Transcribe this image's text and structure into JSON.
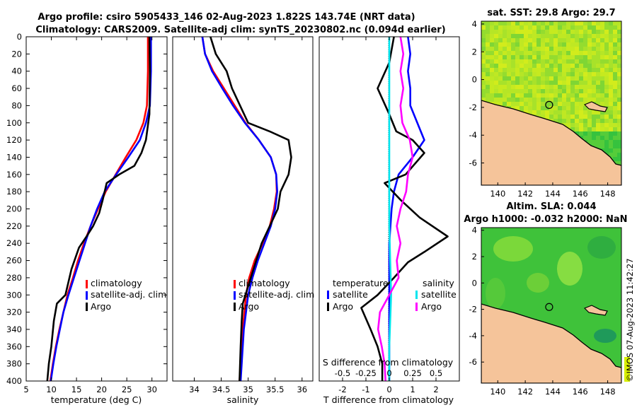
{
  "title_line1": "Argo profile: csiro 5905433_146 02-Aug-2023 1.822S 143.74E (NRT data)",
  "title_line2": "Climatology: CARS2009. Satellite-adj clim: synTS_20230802.nc (0.094d earlier)",
  "side_text": "©IMOS 07-Aug-2023 11:42:27",
  "colors": {
    "climatology": "#ff0000",
    "satellite": "#0000ff",
    "argo": "#000000",
    "argo_sal": "#ff00ff",
    "sat_sal": "#00e5ee",
    "land": "#f5c49a",
    "coast": "#000000"
  },
  "chart_data": [
    {
      "type": "line",
      "name": "temperature-profile",
      "xlabel": "temperature (deg C)",
      "xlim": [
        5,
        33
      ],
      "ylim": [
        400,
        0
      ],
      "xticks": [
        5,
        10,
        15,
        20,
        25,
        30
      ],
      "yticks": [
        0,
        20,
        40,
        60,
        80,
        100,
        120,
        140,
        160,
        180,
        200,
        220,
        240,
        260,
        280,
        300,
        320,
        340,
        360,
        380,
        400
      ],
      "legend": [
        "climatology",
        "satellite-adj. clim",
        "Argo"
      ],
      "series": [
        {
          "name": "climatology",
          "color": "#ff0000",
          "points": [
            [
              29.2,
              0
            ],
            [
              29.2,
              40
            ],
            [
              29.0,
              80
            ],
            [
              28.3,
              100
            ],
            [
              26.9,
              120
            ],
            [
              24.8,
              140
            ],
            [
              22.8,
              160
            ],
            [
              20.8,
              180
            ],
            [
              19.3,
              200
            ],
            [
              17.8,
              220
            ],
            [
              16.5,
              240
            ],
            [
              15.3,
              260
            ],
            [
              14.3,
              280
            ],
            [
              13.2,
              300
            ],
            [
              12.4,
              320
            ],
            [
              11.6,
              340
            ],
            [
              10.9,
              360
            ],
            [
              10.3,
              380
            ],
            [
              9.8,
              400
            ]
          ]
        },
        {
          "name": "satellite",
          "color": "#0000ff",
          "points": [
            [
              29.8,
              0
            ],
            [
              29.8,
              40
            ],
            [
              29.6,
              80
            ],
            [
              28.8,
              100
            ],
            [
              27.6,
              120
            ],
            [
              25.3,
              140
            ],
            [
              22.9,
              160
            ],
            [
              20.6,
              180
            ],
            [
              19.1,
              200
            ],
            [
              17.8,
              220
            ],
            [
              16.7,
              240
            ],
            [
              15.6,
              260
            ],
            [
              14.5,
              280
            ],
            [
              13.4,
              300
            ],
            [
              12.4,
              320
            ],
            [
              11.7,
              340
            ],
            [
              11.0,
              360
            ],
            [
              10.4,
              380
            ],
            [
              9.9,
              400
            ]
          ]
        },
        {
          "name": "Argo",
          "color": "#000000",
          "points": [
            [
              29.5,
              0
            ],
            [
              29.6,
              40
            ],
            [
              29.5,
              90
            ],
            [
              28.8,
              120
            ],
            [
              27.9,
              135
            ],
            [
              26.5,
              150
            ],
            [
              23.5,
              160
            ],
            [
              21.0,
              170
            ],
            [
              20.2,
              190
            ],
            [
              19.5,
              205
            ],
            [
              18.3,
              220
            ],
            [
              17.0,
              232
            ],
            [
              15.5,
              245
            ],
            [
              14.0,
              270
            ],
            [
              12.8,
              300
            ],
            [
              11.1,
              310
            ],
            [
              10.5,
              330
            ],
            [
              10.0,
              360
            ],
            [
              9.5,
              380
            ],
            [
              9.2,
              400
            ]
          ]
        }
      ]
    },
    {
      "type": "line",
      "name": "salinity-profile",
      "xlabel": "salinity",
      "xlim": [
        33.6,
        36.2
      ],
      "ylim": [
        400,
        0
      ],
      "xticks": [
        34,
        34.5,
        35,
        35.5,
        36
      ],
      "legend": [
        "climatology",
        "satellite-adj. clim",
        "Argo"
      ],
      "series": [
        {
          "name": "climatology",
          "color": "#ff0000",
          "points": [
            [
              34.15,
              0
            ],
            [
              34.2,
              20
            ],
            [
              34.35,
              40
            ],
            [
              34.55,
              60
            ],
            [
              34.75,
              80
            ],
            [
              34.95,
              100
            ],
            [
              35.2,
              120
            ],
            [
              35.42,
              140
            ],
            [
              35.52,
              160
            ],
            [
              35.53,
              180
            ],
            [
              35.48,
              200
            ],
            [
              35.4,
              220
            ],
            [
              35.27,
              240
            ],
            [
              35.12,
              260
            ],
            [
              35.02,
              280
            ],
            [
              34.96,
              300
            ],
            [
              34.93,
              320
            ],
            [
              34.9,
              340
            ],
            [
              34.88,
              360
            ],
            [
              34.86,
              380
            ],
            [
              34.84,
              400
            ]
          ]
        },
        {
          "name": "satellite",
          "color": "#0000ff",
          "points": [
            [
              34.15,
              0
            ],
            [
              34.2,
              20
            ],
            [
              34.33,
              40
            ],
            [
              34.52,
              60
            ],
            [
              34.72,
              80
            ],
            [
              34.94,
              100
            ],
            [
              35.2,
              120
            ],
            [
              35.42,
              140
            ],
            [
              35.52,
              160
            ],
            [
              35.54,
              180
            ],
            [
              35.5,
              200
            ],
            [
              35.42,
              220
            ],
            [
              35.3,
              240
            ],
            [
              35.18,
              260
            ],
            [
              35.08,
              280
            ],
            [
              35.0,
              300
            ],
            [
              34.96,
              320
            ],
            [
              34.92,
              340
            ],
            [
              34.9,
              360
            ],
            [
              34.88,
              380
            ],
            [
              34.86,
              400
            ]
          ]
        },
        {
          "name": "Argo",
          "color": "#000000",
          "points": [
            [
              34.3,
              0
            ],
            [
              34.4,
              20
            ],
            [
              34.6,
              40
            ],
            [
              34.7,
              60
            ],
            [
              34.85,
              80
            ],
            [
              35.0,
              100
            ],
            [
              35.4,
              110
            ],
            [
              35.75,
              120
            ],
            [
              35.8,
              140
            ],
            [
              35.75,
              160
            ],
            [
              35.6,
              180
            ],
            [
              35.55,
              200
            ],
            [
              35.4,
              220
            ],
            [
              35.25,
              240
            ],
            [
              35.1,
              270
            ],
            [
              35.0,
              290
            ],
            [
              34.9,
              310
            ],
            [
              34.88,
              330
            ],
            [
              34.86,
              360
            ],
            [
              34.85,
              380
            ],
            [
              34.84,
              400
            ]
          ]
        }
      ]
    },
    {
      "type": "line",
      "name": "difference-profile",
      "xlabel": "T difference from climatology",
      "xlabel_top": "S difference from climatology",
      "xlim": [
        -3,
        3
      ],
      "xticks": [
        -2,
        -1,
        0,
        1,
        2
      ],
      "xticks_top_labels": [
        "-0.5",
        "-0.25",
        "0",
        "0.25",
        "0.5"
      ],
      "legend_title_left": "temperature",
      "legend_title_right": "salinity",
      "legend_left": [
        "satellite",
        "Argo"
      ],
      "legend_right": [
        "satellite",
        "Argo"
      ],
      "series": [
        {
          "name": "T satellite",
          "color": "#0000ff",
          "points": [
            [
              0.8,
              0
            ],
            [
              0.9,
              20
            ],
            [
              0.8,
              40
            ],
            [
              0.9,
              60
            ],
            [
              0.9,
              80
            ],
            [
              1.2,
              100
            ],
            [
              1.5,
              120
            ],
            [
              1.0,
              140
            ],
            [
              0.4,
              160
            ],
            [
              0.2,
              180
            ],
            [
              0.1,
              200
            ],
            [
              0.0,
              240
            ],
            [
              0.0,
              300
            ],
            [
              0.0,
              340
            ],
            [
              0.0,
              400
            ]
          ]
        },
        {
          "name": "T Argo",
          "color": "#000000",
          "points": [
            [
              0.2,
              0
            ],
            [
              0.0,
              30
            ],
            [
              -0.5,
              60
            ],
            [
              0.0,
              90
            ],
            [
              0.3,
              110
            ],
            [
              1.0,
              120
            ],
            [
              1.5,
              135
            ],
            [
              0.7,
              160
            ],
            [
              -0.2,
              170
            ],
            [
              0.5,
              190
            ],
            [
              1.3,
              210
            ],
            [
              2.5,
              232
            ],
            [
              1.5,
              250
            ],
            [
              0.8,
              262
            ],
            [
              0.2,
              280
            ],
            [
              -0.5,
              300
            ],
            [
              -1.2,
              315
            ],
            [
              -0.8,
              340
            ],
            [
              -0.5,
              360
            ],
            [
              -0.3,
              380
            ],
            [
              -0.3,
              400
            ]
          ]
        },
        {
          "name": "S satellite",
          "color": "#00e5ee",
          "points": [
            [
              0.0,
              0
            ],
            [
              0.0,
              40
            ],
            [
              0.0,
              100
            ],
            [
              0.0,
              160
            ],
            [
              0.0,
              220
            ],
            [
              0.02,
              300
            ],
            [
              0.0,
              360
            ],
            [
              0.0,
              400
            ]
          ]
        },
        {
          "name": "S Argo",
          "color": "#ff00ff",
          "points": [
            [
              0.12,
              0
            ],
            [
              0.15,
              20
            ],
            [
              0.12,
              40
            ],
            [
              0.15,
              60
            ],
            [
              0.12,
              80
            ],
            [
              0.14,
              100
            ],
            [
              0.22,
              120
            ],
            [
              0.25,
              140
            ],
            [
              0.2,
              160
            ],
            [
              0.18,
              180
            ],
            [
              0.12,
              200
            ],
            [
              0.08,
              220
            ],
            [
              0.12,
              240
            ],
            [
              0.08,
              260
            ],
            [
              0.1,
              280
            ],
            [
              0.0,
              300
            ],
            [
              -0.1,
              320
            ],
            [
              -0.12,
              340
            ],
            [
              -0.08,
              360
            ],
            [
              -0.05,
              380
            ],
            [
              -0.04,
              400
            ]
          ]
        }
      ]
    },
    {
      "type": "heatmap",
      "name": "sst-map",
      "title": "sat. SST: 29.8 Argo: 29.7",
      "xticks": [
        140,
        142,
        144,
        146,
        148
      ],
      "yticks": [
        4,
        2,
        0,
        -2,
        -4,
        -6
      ],
      "xlim": [
        138.8,
        149.0
      ],
      "ylim": [
        -7.6,
        4.2
      ],
      "marker": [
        143.74,
        -1.822
      ]
    },
    {
      "type": "heatmap",
      "name": "sla-map",
      "title": "Altim. SLA: 0.044",
      "subtitle": "Argo h1000: -0.032 h2000: NaN",
      "xticks": [
        140,
        142,
        144,
        146,
        148
      ],
      "yticks": [
        4,
        2,
        0,
        -2,
        -4,
        -6
      ],
      "xlim": [
        138.8,
        149.0
      ],
      "ylim": [
        -7.6,
        4.2
      ],
      "marker": [
        143.74,
        -1.822
      ]
    }
  ]
}
